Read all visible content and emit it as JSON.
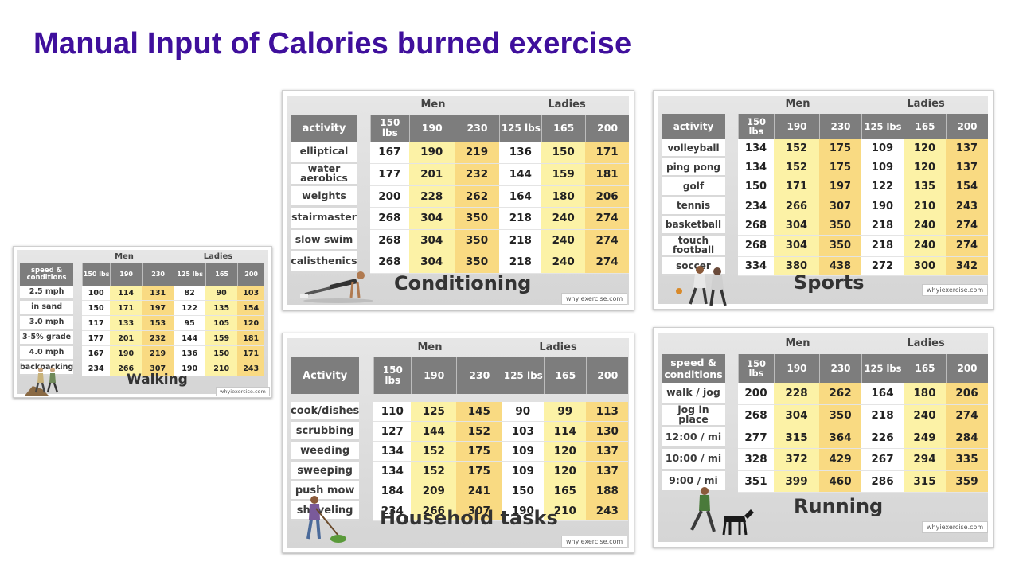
{
  "title": "Manual Input of Calories burned exercise",
  "cards": {
    "walking": {
      "title": "Walking",
      "watermark": "whyiexercise.com",
      "group_men": "Men",
      "group_ladies": "Ladies",
      "first_header": "speed & conditions",
      "weights": [
        "150 lbs",
        "190",
        "230",
        "125 lbs",
        "165",
        "200"
      ],
      "rows": [
        {
          "label": "2.5 mph",
          "values": [
            "100",
            "114",
            "131",
            "82",
            "90",
            "103"
          ]
        },
        {
          "label": "in sand",
          "values": [
            "150",
            "171",
            "197",
            "122",
            "135",
            "154"
          ]
        },
        {
          "label": "3.0 mph",
          "values": [
            "117",
            "133",
            "153",
            "95",
            "105",
            "120"
          ]
        },
        {
          "label": "3-5% grade",
          "values": [
            "177",
            "201",
            "232",
            "144",
            "159",
            "181"
          ]
        },
        {
          "label": "4.0 mph",
          "values": [
            "167",
            "190",
            "219",
            "136",
            "150",
            "171"
          ]
        },
        {
          "label": "backpacking",
          "values": [
            "234",
            "266",
            "307",
            "190",
            "210",
            "243"
          ]
        }
      ]
    },
    "conditioning": {
      "title": "Conditioning",
      "watermark": "whyiexercise.com",
      "group_men": "Men",
      "group_ladies": "Ladies",
      "first_header": "activity",
      "weights": [
        "150 lbs",
        "190",
        "230",
        "125 lbs",
        "165",
        "200"
      ],
      "rows": [
        {
          "label": "elliptical",
          "values": [
            "167",
            "190",
            "219",
            "136",
            "150",
            "171"
          ]
        },
        {
          "label": "water aerobics",
          "values": [
            "177",
            "201",
            "232",
            "144",
            "159",
            "181"
          ]
        },
        {
          "label": "weights",
          "values": [
            "200",
            "228",
            "262",
            "164",
            "180",
            "206"
          ]
        },
        {
          "label": "stairmaster",
          "values": [
            "268",
            "304",
            "350",
            "218",
            "240",
            "274"
          ]
        },
        {
          "label": "slow swim",
          "values": [
            "268",
            "304",
            "350",
            "218",
            "240",
            "274"
          ]
        },
        {
          "label": "calisthenics",
          "values": [
            "268",
            "304",
            "350",
            "218",
            "240",
            "274"
          ]
        }
      ]
    },
    "sports": {
      "title": "Sports",
      "watermark": "whyiexercise.com",
      "group_men": "Men",
      "group_ladies": "Ladies",
      "first_header": "activity",
      "weights": [
        "150 lbs",
        "190",
        "230",
        "125 lbs",
        "165",
        "200"
      ],
      "rows": [
        {
          "label": "volleyball",
          "values": [
            "134",
            "152",
            "175",
            "109",
            "120",
            "137"
          ]
        },
        {
          "label": "ping pong",
          "values": [
            "134",
            "152",
            "175",
            "109",
            "120",
            "137"
          ]
        },
        {
          "label": "golf",
          "values": [
            "150",
            "171",
            "197",
            "122",
            "135",
            "154"
          ]
        },
        {
          "label": "tennis",
          "values": [
            "234",
            "266",
            "307",
            "190",
            "210",
            "243"
          ]
        },
        {
          "label": "basketball",
          "values": [
            "268",
            "304",
            "350",
            "218",
            "240",
            "274"
          ]
        },
        {
          "label": "touch football",
          "values": [
            "268",
            "304",
            "350",
            "218",
            "240",
            "274"
          ]
        },
        {
          "label": "soccer",
          "values": [
            "334",
            "380",
            "438",
            "272",
            "300",
            "342"
          ]
        }
      ]
    },
    "household": {
      "title": "Household tasks",
      "watermark": "whyiexercise.com",
      "group_men": "Men",
      "group_ladies": "Ladies",
      "first_header": "Activity",
      "weights": [
        "150 lbs",
        "190",
        "230",
        "125 lbs",
        "165",
        "200"
      ],
      "rows": [
        {
          "label": "cook/dishes",
          "values": [
            "110",
            "125",
            "145",
            "90",
            "99",
            "113"
          ]
        },
        {
          "label": "scrubbing",
          "values": [
            "127",
            "144",
            "152",
            "103",
            "114",
            "130"
          ]
        },
        {
          "label": "weeding",
          "values": [
            "134",
            "152",
            "175",
            "109",
            "120",
            "137"
          ]
        },
        {
          "label": "sweeping",
          "values": [
            "134",
            "152",
            "175",
            "109",
            "120",
            "137"
          ]
        },
        {
          "label": "push mow",
          "values": [
            "184",
            "209",
            "241",
            "150",
            "165",
            "188"
          ]
        },
        {
          "label": "shoveling",
          "values": [
            "234",
            "266",
            "307",
            "190",
            "210",
            "243"
          ]
        }
      ]
    },
    "running": {
      "title": "Running",
      "watermark": "whyiexercise.com",
      "group_men": "Men",
      "group_ladies": "Ladies",
      "first_header": "speed & conditions",
      "weights": [
        "150 lbs",
        "190",
        "230",
        "125 lbs",
        "165",
        "200"
      ],
      "rows": [
        {
          "label": "walk / jog",
          "values": [
            "200",
            "228",
            "262",
            "164",
            "180",
            "206"
          ]
        },
        {
          "label": "jog in place",
          "values": [
            "268",
            "304",
            "350",
            "218",
            "240",
            "274"
          ]
        },
        {
          "label": "12:00 / mi",
          "values": [
            "277",
            "315",
            "364",
            "226",
            "249",
            "284"
          ]
        },
        {
          "label": "10:00 / mi",
          "values": [
            "328",
            "372",
            "429",
            "267",
            "294",
            "335"
          ]
        },
        {
          "label": "9:00 / mi",
          "values": [
            "351",
            "399",
            "460",
            "286",
            "315",
            "359"
          ]
        }
      ]
    }
  }
}
